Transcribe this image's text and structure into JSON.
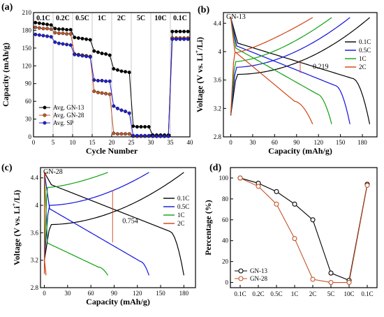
{
  "chart_data": [
    {
      "panel": "(a)",
      "type": "scatter",
      "xlabel": "Cycle Number",
      "ylabel": "Capacity (mAh/g)",
      "xlim": [
        0,
        40
      ],
      "ylim": [
        0,
        210
      ],
      "xticks": [
        0,
        5,
        10,
        15,
        20,
        25,
        30,
        35,
        40
      ],
      "yticks": [
        0,
        30,
        60,
        90,
        120,
        150,
        180,
        210
      ],
      "rate_labels": [
        "0.1C",
        "0.2C",
        "0.5C",
        "1C",
        "2C",
        "5C",
        "10C",
        "0.1C"
      ],
      "rate_boundaries": [
        5,
        10,
        15,
        20,
        25,
        30,
        35
      ],
      "legend_position": "bottom-left",
      "series": [
        {
          "name": "Avg. GN-13",
          "color": "#000000",
          "values": [
            193,
            192,
            191,
            190,
            189,
            183,
            182,
            182,
            181,
            181,
            168,
            167,
            166,
            165,
            164,
            145,
            143,
            141,
            140,
            138,
            115,
            113,
            111,
            110,
            109,
            18,
            17,
            17,
            17,
            17,
            3,
            3,
            3,
            3,
            3,
            178,
            178,
            178,
            178,
            178
          ]
        },
        {
          "name": "Avg. GN-28",
          "color": "#c0552a",
          "values": [
            185,
            184,
            183,
            183,
            182,
            176,
            175,
            175,
            174,
            174,
            140,
            139,
            138,
            137,
            136,
            77,
            75,
            74,
            73,
            72,
            6,
            5,
            5,
            5,
            5,
            1,
            1,
            1,
            1,
            1,
            1,
            1,
            1,
            1,
            1,
            167,
            167,
            167,
            167,
            167
          ]
        },
        {
          "name": "Avg. SP",
          "color": "#2020d0",
          "values": [
            173,
            172,
            171,
            170,
            169,
            160,
            158,
            157,
            156,
            155,
            139,
            138,
            137,
            136,
            135,
            96,
            95,
            95,
            94,
            94,
            52,
            48,
            45,
            43,
            40,
            2,
            2,
            2,
            2,
            2,
            1,
            1,
            1,
            1,
            1,
            165,
            165,
            165,
            165,
            165
          ]
        }
      ]
    },
    {
      "panel": "(b)",
      "type": "line",
      "annotation_label": "GN-13",
      "xlabel": "Capacity (mAh/g)",
      "ylabel": "Voltage (V vs. Li+/Li)",
      "ylabel_main": "Voltage (V vs. Li",
      "ylabel_sup": "+",
      "ylabel_end": "/Li)",
      "xlim": [
        -10,
        200
      ],
      "ylim": [
        2.8,
        4.55
      ],
      "xticks": [
        0,
        30,
        60,
        90,
        120,
        150,
        180
      ],
      "yticks": [
        2.8,
        3.2,
        3.6,
        4.0,
        4.4
      ],
      "polarization_label": "0.219",
      "legend_position": "right",
      "series": [
        {
          "name": "0.1C",
          "color": "#000000",
          "capacity": 190
        },
        {
          "name": "0.5C",
          "color": "#1010e0",
          "capacity": 163
        },
        {
          "name": "1C",
          "color": "#10a010",
          "capacity": 138
        },
        {
          "name": "2C",
          "color": "#d04010",
          "capacity": 112
        }
      ]
    },
    {
      "panel": "(c)",
      "type": "line",
      "annotation_label": "GN-28",
      "xlabel": "Capacity (mAh/g)",
      "ylabel": "Voltage (V vs. Li+/Li)",
      "ylabel_main": "Voltage (V vs. Li",
      "ylabel_sup": "+",
      "ylabel_end": "/Li)",
      "xlim": [
        -5,
        195
      ],
      "ylim": [
        2.8,
        4.55
      ],
      "xticks": [
        0,
        30,
        60,
        90,
        120,
        150,
        180
      ],
      "yticks": [
        2.8,
        3.2,
        3.6,
        4.0,
        4.4
      ],
      "polarization_label": "0.754",
      "legend_position": "right",
      "series": [
        {
          "name": "0.1C",
          "color": "#000000",
          "capacity": 180
        },
        {
          "name": "0.5C",
          "color": "#1010e0",
          "capacity": 135
        },
        {
          "name": "1C",
          "color": "#10a010",
          "capacity": 82
        },
        {
          "name": "2C",
          "color": "#d04010",
          "capacity": 2
        }
      ]
    },
    {
      "panel": "(d)",
      "type": "line",
      "xlabel": "",
      "ylabel": "Percentage (%)",
      "ylim": [
        -5,
        110
      ],
      "yticks": [
        0,
        20,
        40,
        60,
        80,
        100
      ],
      "categories": [
        "0.1C",
        "0.2C",
        "0.5C",
        "1C",
        "2C",
        "5C",
        "10C",
        "0.1C"
      ],
      "legend_position": "bottom-left",
      "series": [
        {
          "name": "GN-13",
          "color": "#000000",
          "values": [
            100,
            95,
            87,
            75,
            60,
            9,
            2,
            94
          ]
        },
        {
          "name": "GN-28",
          "color": "#c0552a",
          "values": [
            100,
            92,
            75,
            42,
            3,
            0,
            0,
            93
          ]
        }
      ]
    }
  ]
}
